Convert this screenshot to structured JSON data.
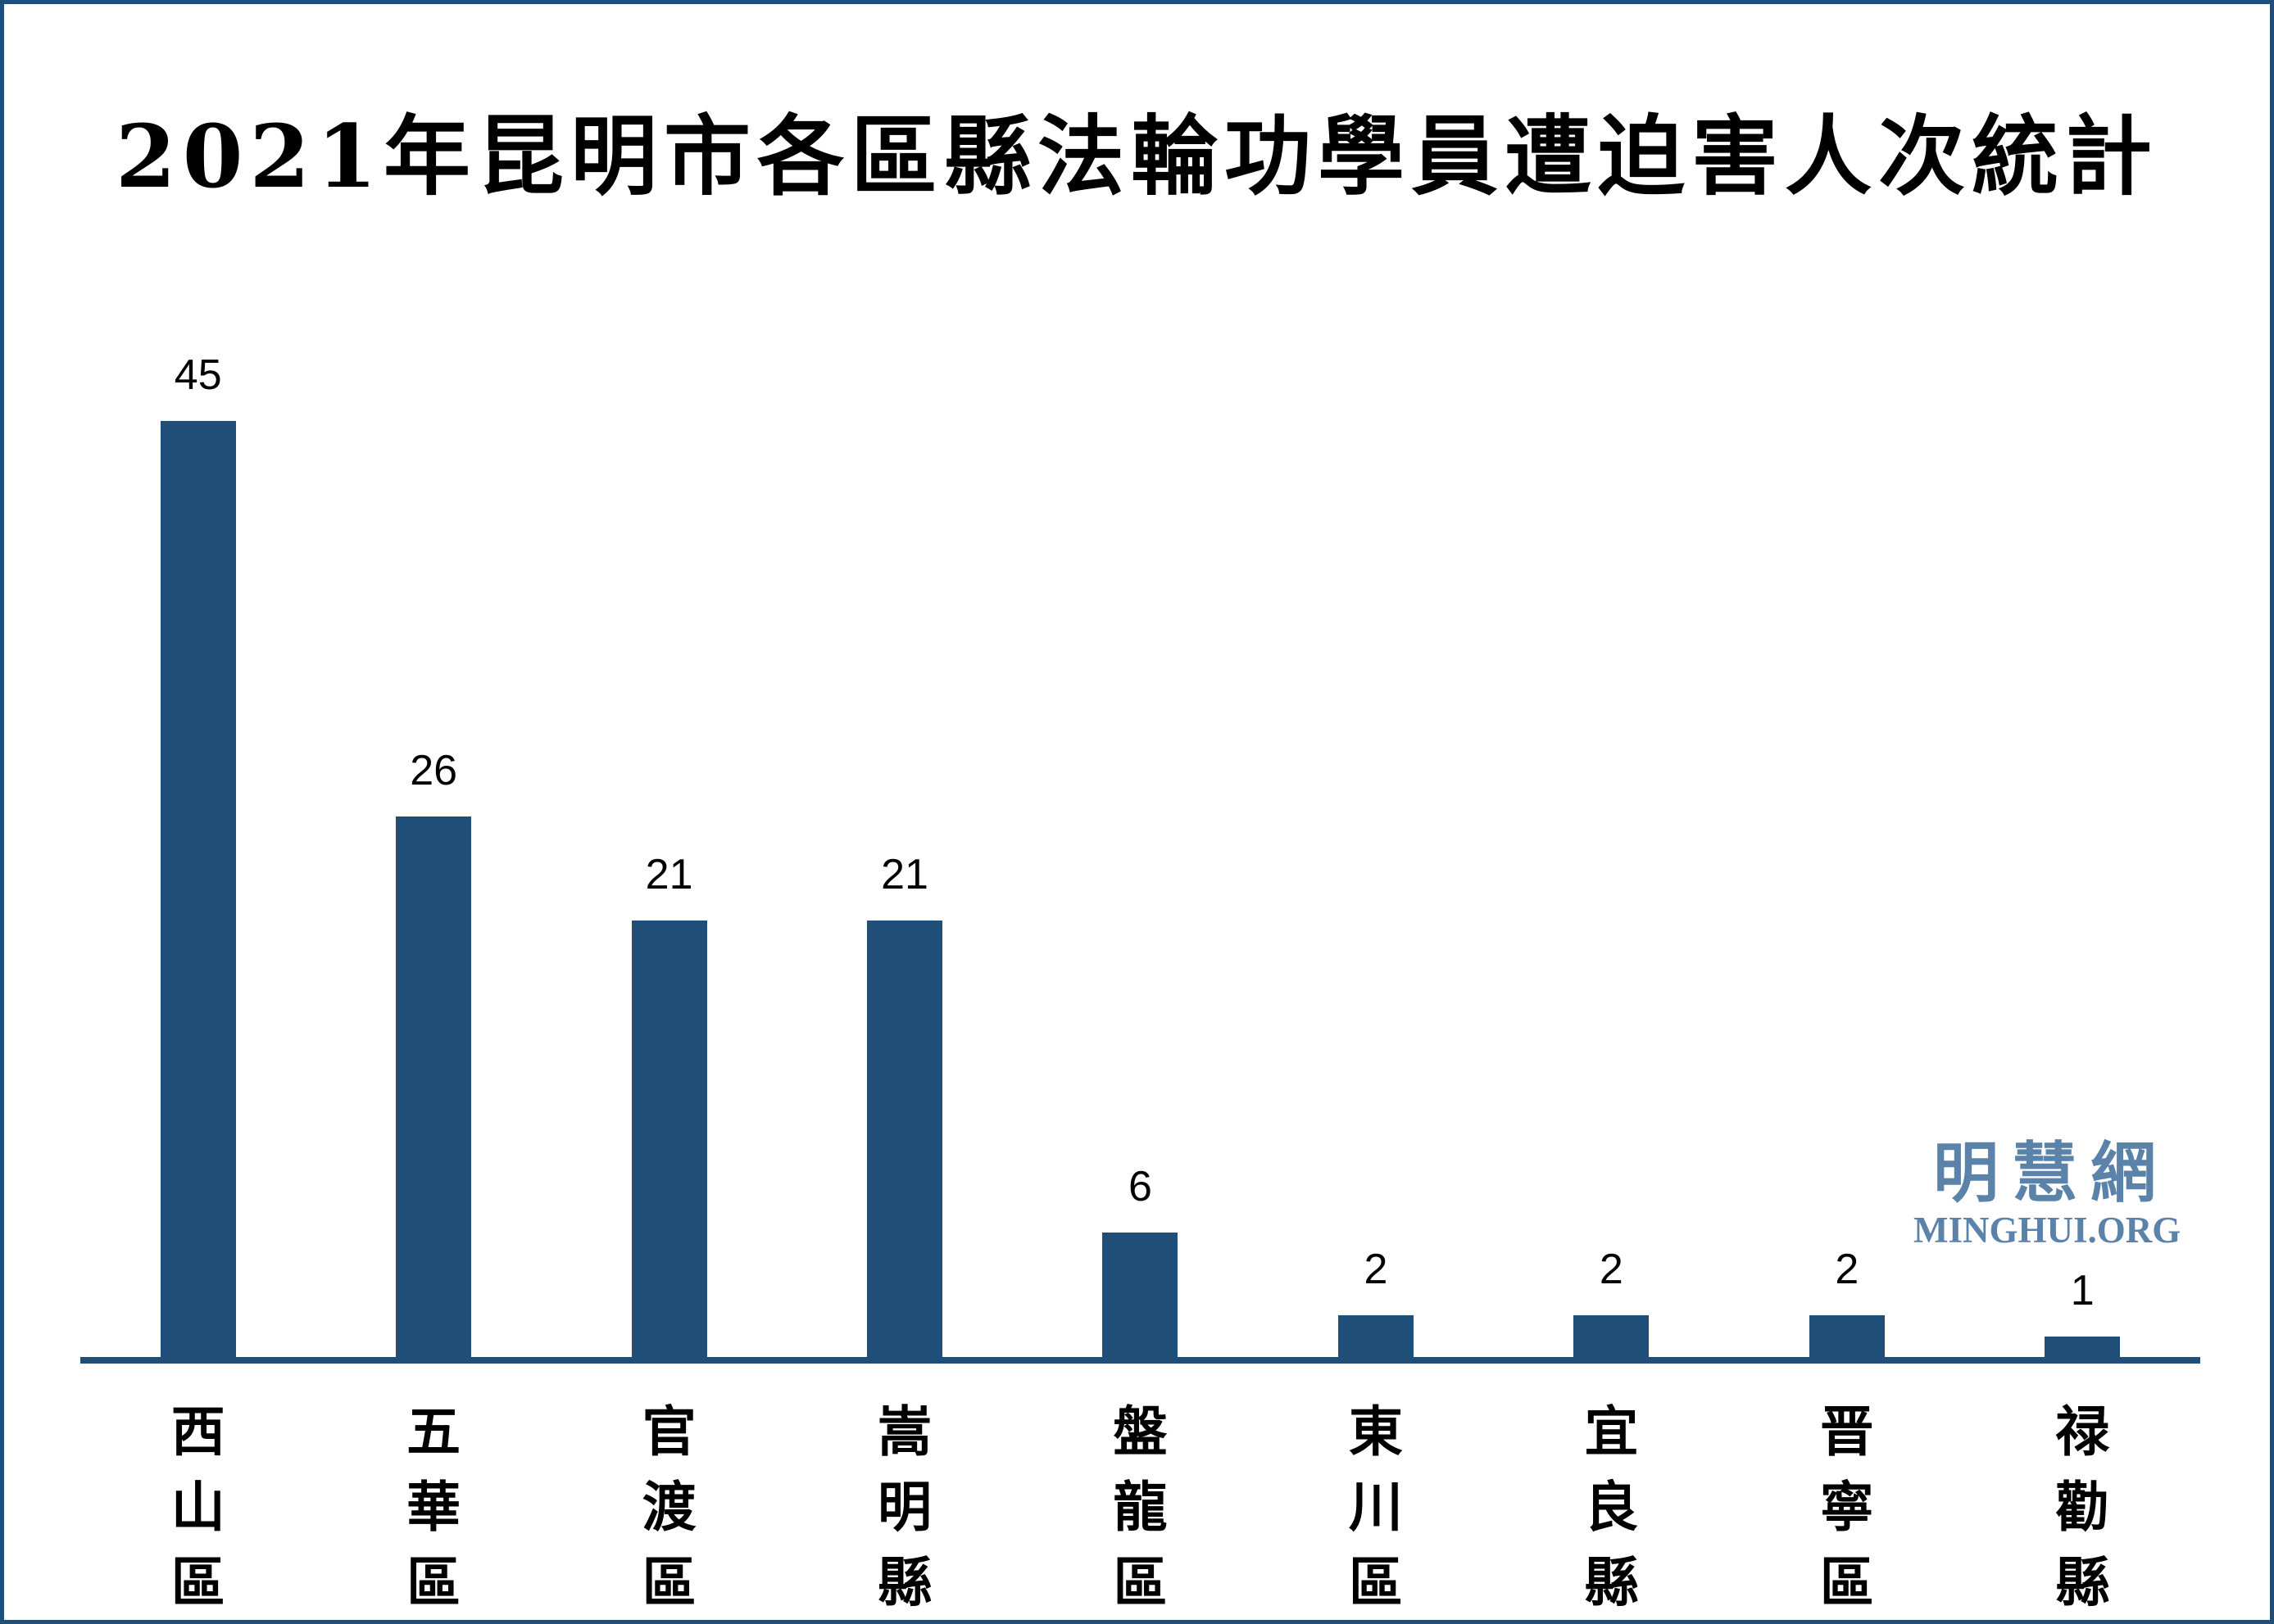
{
  "chart_data": {
    "type": "bar",
    "title": "2021年昆明市各區縣法輪功學員遭迫害人次統計",
    "categories": [
      "西山區",
      "五華區",
      "官渡區",
      "嵩明縣",
      "盤龍區",
      "東川區",
      "宜良縣",
      "晋寧區",
      "禄勸縣"
    ],
    "values": [
      45,
      26,
      21,
      21,
      6,
      2,
      2,
      2,
      1
    ],
    "data_labels": [
      "45",
      "26",
      "21",
      "21",
      "6",
      "2",
      "2",
      "2",
      "1"
    ],
    "xlabel": "",
    "ylabel": "",
    "ylim": [
      0,
      45
    ],
    "grid": false,
    "legend": false,
    "y_axis_visible": false,
    "bar_color": "#1F4E79",
    "axis_line_color": "#1F4E79"
  },
  "watermark": {
    "cjk": "明慧網",
    "latin": "MINGHUI.ORG",
    "color": "#5B82A8"
  },
  "colors": {
    "bar": "#1F4E79",
    "axis": "#1F4E79",
    "frame_border": "#1F4E79",
    "label_text": "#000000",
    "background": "#FFFFFF"
  }
}
